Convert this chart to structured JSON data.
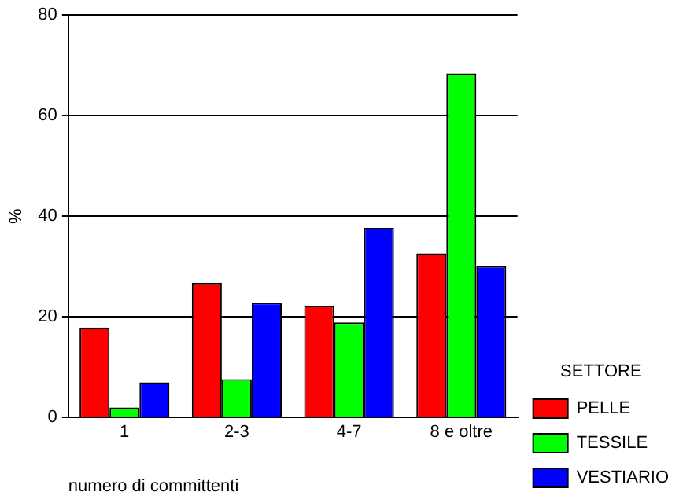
{
  "chart_data": {
    "type": "bar",
    "xlabel": "numero di committenti",
    "ylabel": "%",
    "legend_title": "SETTORE",
    "categories": [
      "1",
      "2-3",
      "4-7",
      "8 e oltre"
    ],
    "series": [
      {
        "name": "PELLE",
        "color": "#ff0000",
        "values": [
          17.9,
          26.8,
          22.2,
          32.6
        ]
      },
      {
        "name": "TESSILE",
        "color": "#00ff00",
        "values": [
          2.0,
          7.6,
          18.9,
          68.4
        ]
      },
      {
        "name": "VESTIARIO",
        "color": "#0000ff",
        "values": [
          7.0,
          22.8,
          37.7,
          30.1
        ]
      }
    ],
    "ylim": [
      0,
      80
    ],
    "yticks": [
      0,
      20,
      40,
      60,
      80
    ],
    "grid": "y",
    "legend": "right"
  }
}
